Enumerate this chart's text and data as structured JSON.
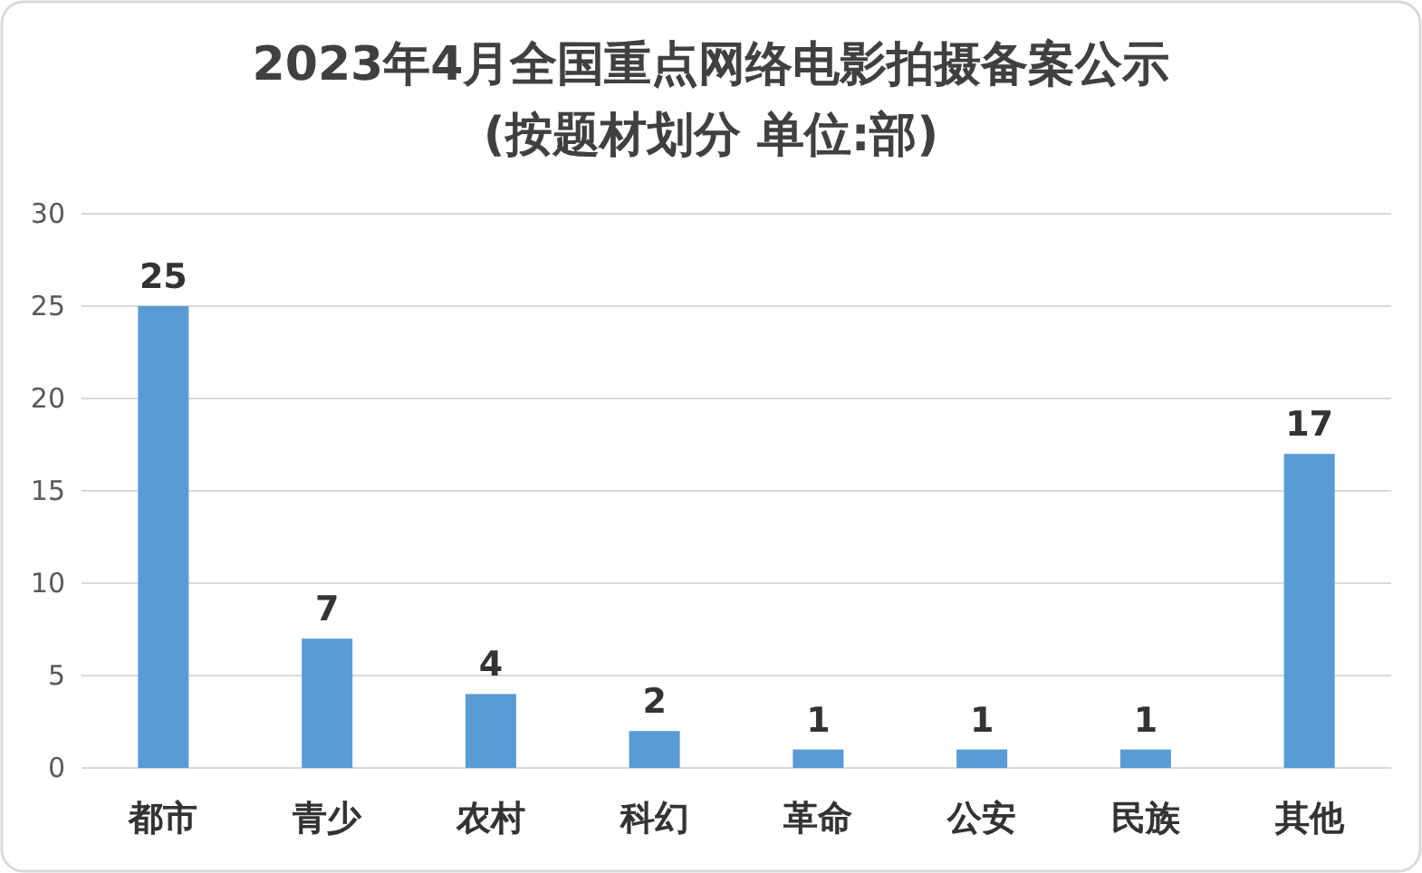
{
  "chart_data": {
    "type": "bar",
    "title": "2023年4月全国重点网络电影拍摄备案公示",
    "subtitle": "(按题材划分 单位:部)",
    "categories": [
      "都市",
      "青少",
      "农村",
      "科幻",
      "革命",
      "公安",
      "民族",
      "其他"
    ],
    "values": [
      25,
      7,
      4,
      2,
      1,
      1,
      1,
      17
    ],
    "color": "#5b9bd5",
    "ylim": [
      0,
      30
    ],
    "yticks": [
      0,
      5,
      10,
      15,
      20,
      25,
      30
    ],
    "grid": "y",
    "data_labels": true
  }
}
